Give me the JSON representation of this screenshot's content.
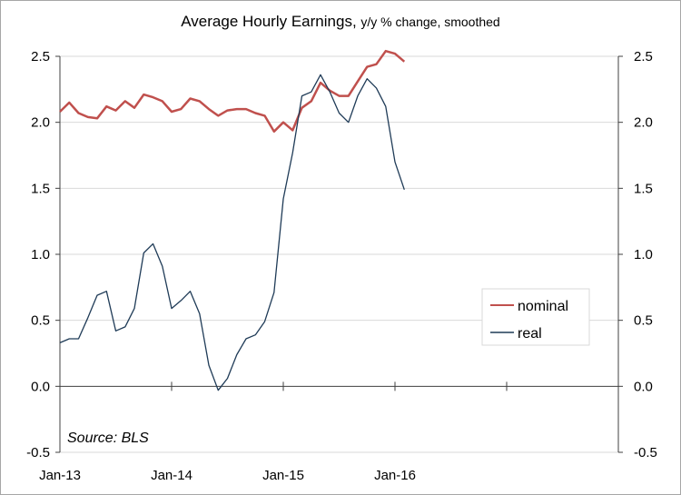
{
  "chart_data": {
    "type": "line",
    "title": "Average Hourly Earnings,",
    "title_suffix": "y/y % change, smoothed",
    "source": "Source: BLS",
    "x_tick_labels": [
      "Jan-13",
      "Jan-14",
      "Jan-15",
      "Jan-16"
    ],
    "y_tick_labels": [
      "2.5",
      "2.0",
      "1.5",
      "1.0",
      "0.5",
      "0.0",
      "-0.5"
    ],
    "y2_tick_labels": [
      "2.5",
      "2.0",
      "1.5",
      "1.0",
      "0.5",
      "0.0",
      "-0.5"
    ],
    "ylim": [
      -0.5,
      2.5
    ],
    "y2lim": [
      -0.5,
      2.5
    ],
    "x_period_start": "Jan-13",
    "x_step": "month",
    "xlim_months": [
      0,
      60
    ],
    "grid": "horizontal",
    "legend_position": "lower-right",
    "series": [
      {
        "name": "nominal",
        "color": "#c0504d",
        "values": [
          2.08,
          2.15,
          2.07,
          2.04,
          2.03,
          2.12,
          2.09,
          2.16,
          2.11,
          2.21,
          2.19,
          2.16,
          2.08,
          2.1,
          2.18,
          2.16,
          2.1,
          2.05,
          2.09,
          2.1,
          2.1,
          2.07,
          2.05,
          1.93,
          2.0,
          1.94,
          2.11,
          2.16,
          2.3,
          2.24,
          2.2,
          2.2,
          2.31,
          2.42,
          2.44,
          2.54,
          2.52,
          2.46
        ]
      },
      {
        "name": "real",
        "color": "#1f3b57",
        "values": [
          0.33,
          0.36,
          0.36,
          0.52,
          0.69,
          0.72,
          0.42,
          0.45,
          0.59,
          1.01,
          1.08,
          0.91,
          0.59,
          0.65,
          0.72,
          0.55,
          0.16,
          -0.03,
          0.06,
          0.24,
          0.36,
          0.39,
          0.49,
          0.71,
          1.42,
          1.77,
          2.2,
          2.23,
          2.36,
          2.23,
          2.07,
          2.0,
          2.2,
          2.33,
          2.26,
          2.12,
          1.7,
          1.49
        ]
      }
    ]
  }
}
